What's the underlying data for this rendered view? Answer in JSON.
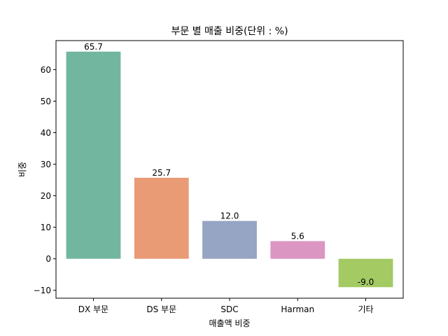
{
  "chart_data": {
    "type": "bar",
    "title": "부문 별 매출 비중(단위 : %)",
    "xlabel": "매출액 비중",
    "ylabel": "비중",
    "categories": [
      "DX 부문",
      "DS 부문",
      "SDC",
      "Harman",
      "기타"
    ],
    "values": [
      65.7,
      25.7,
      12.0,
      5.6,
      -9.0
    ],
    "value_labels": [
      "65.7",
      "25.7",
      "12.0",
      "5.6",
      "-9.0"
    ],
    "colors": [
      "#72b6a0",
      "#e99b76",
      "#96a5c4",
      "#dc96c2",
      "#a3ca63"
    ],
    "yticks": [
      -10,
      0,
      10,
      20,
      30,
      40,
      50,
      60
    ],
    "ytick_labels": [
      "−10",
      "0",
      "10",
      "20",
      "30",
      "40",
      "50",
      "60"
    ],
    "ylim": [
      -12.5,
      69.2
    ],
    "grid": false,
    "legend": false
  }
}
